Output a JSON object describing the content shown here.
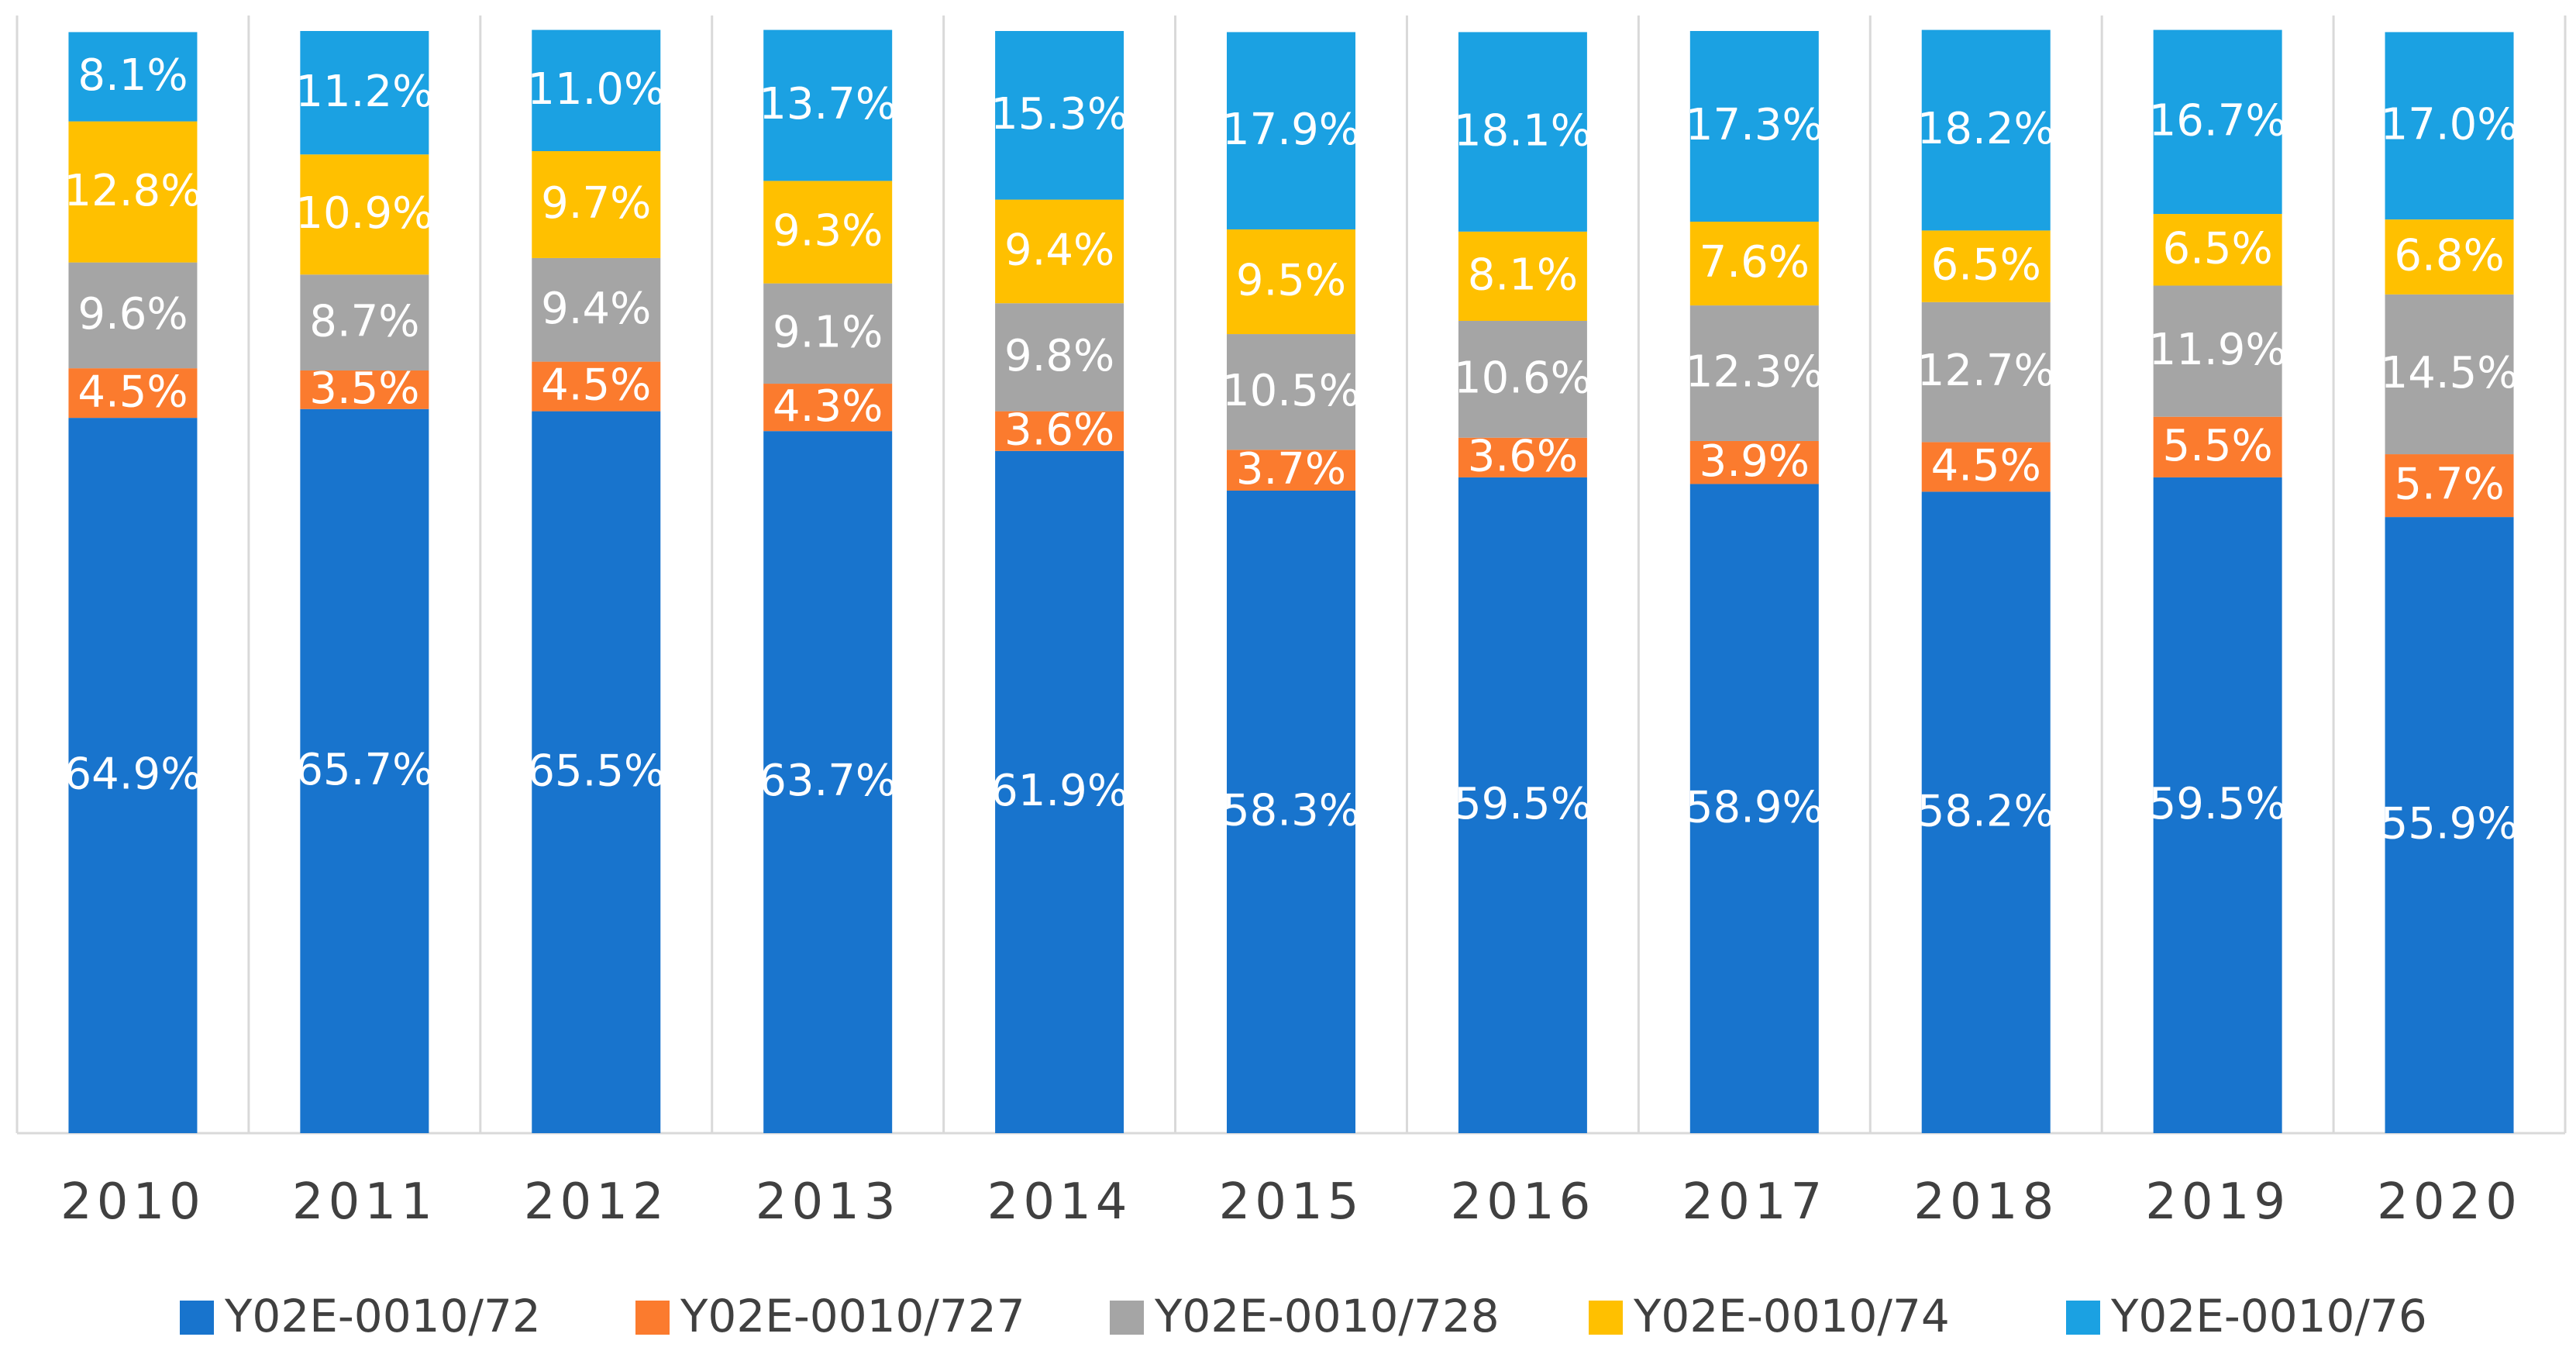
{
  "chart_data": {
    "type": "bar",
    "stacked": true,
    "title": "",
    "xlabel": "",
    "ylabel": "",
    "ylim": [
      0,
      100
    ],
    "grid": "vertical category separators",
    "legend_position": "bottom",
    "categories": [
      "2010",
      "2011",
      "2012",
      "2013",
      "2014",
      "2015",
      "2016",
      "2017",
      "2018",
      "2019",
      "2020"
    ],
    "series": [
      {
        "name": "Y02E-0010/72",
        "color": "#1874CD",
        "values": [
          64.9,
          65.7,
          65.5,
          63.7,
          61.9,
          58.3,
          59.5,
          58.9,
          58.2,
          59.5,
          55.9
        ],
        "labels": [
          "64.9%",
          "65.7%",
          "65.5%",
          "63.7%",
          "61.9%",
          "58.3%",
          "59.5%",
          "58.9%",
          "58.2%",
          "59.5%",
          "55.9%"
        ]
      },
      {
        "name": "Y02E-0010/727",
        "color": "#FB7B2E",
        "values": [
          4.5,
          3.5,
          4.5,
          4.3,
          3.6,
          3.7,
          3.6,
          3.9,
          4.5,
          5.5,
          5.7
        ],
        "labels": [
          "4.5%",
          "3.5%",
          "4.5%",
          "4.3%",
          "3.6%",
          "3.7%",
          "3.6%",
          "3.9%",
          "4.5%",
          "5.5%",
          "5.7%"
        ]
      },
      {
        "name": "Y02E-0010/728",
        "color": "#A5A5A5",
        "values": [
          9.6,
          8.7,
          9.4,
          9.1,
          9.8,
          10.5,
          10.6,
          12.3,
          12.7,
          11.9,
          14.5
        ],
        "labels": [
          "9.6%",
          "8.7%",
          "9.4%",
          "9.1%",
          "9.8%",
          "10.5%",
          "10.6%",
          "12.3%",
          "12.7%",
          "11.9%",
          "14.5%"
        ]
      },
      {
        "name": "Y02E-0010/74",
        "color": "#FFC000",
        "values": [
          12.8,
          10.9,
          9.7,
          9.3,
          9.4,
          9.5,
          8.1,
          7.6,
          6.5,
          6.5,
          6.8
        ],
        "labels": [
          "12.8%",
          "10.9%",
          "9.7%",
          "9.3%",
          "9.4%",
          "9.5%",
          "8.1%",
          "7.6%",
          "6.5%",
          "6.5%",
          "6.8%"
        ]
      },
      {
        "name": "Y02E-0010/76",
        "color": "#1BA1E2",
        "values": [
          8.1,
          11.2,
          11.0,
          13.7,
          15.3,
          17.9,
          18.1,
          17.3,
          18.2,
          16.7,
          17.0
        ],
        "labels": [
          "8.1%",
          "11.2%",
          "11.0%",
          "13.7%",
          "15.3%",
          "17.9%",
          "18.1%",
          "17.3%",
          "18.2%",
          "16.7%",
          "17.0%"
        ]
      }
    ]
  }
}
